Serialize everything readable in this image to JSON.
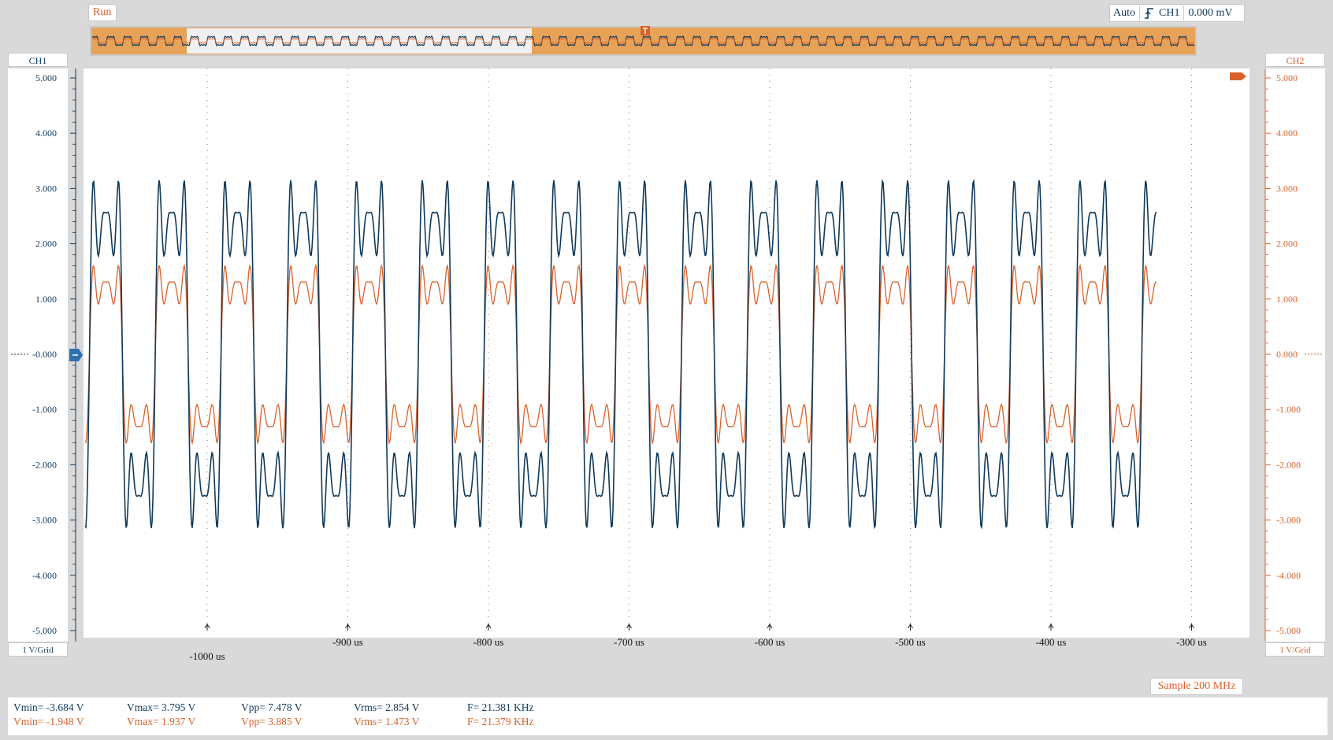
{
  "status": {
    "run_label": "Run"
  },
  "trigger": {
    "mode": "Auto",
    "channel": "CH1",
    "level": "0.000 mV",
    "edge_icon": "rising-edge-icon"
  },
  "channels": {
    "ch1": {
      "label": "CH1",
      "scale": "1 V/Grid",
      "color": "#113a5c"
    },
    "ch2": {
      "label": "CH2",
      "scale": "1 V/Grid",
      "color": "#d9622b"
    }
  },
  "ch1_ticks": [
    "5.000",
    "4.000",
    "3.000",
    "2.000",
    "1.000",
    "-0.000",
    "-1.000",
    "-2.000",
    "-3.000",
    "-4.000",
    "-5.000"
  ],
  "ch2_ticks": [
    "5.000",
    "4.000",
    "3.000",
    "2.000",
    "1.000",
    "0.000",
    "-1.000",
    "-2.000",
    "-3.000",
    "-4.000",
    "-5.000"
  ],
  "time_ticks": [
    "-1000 us",
    "-900 us",
    "-800 us",
    "-700 us",
    "-600 us",
    "-500 us",
    "-400 us",
    "-300 us"
  ],
  "sample_label": "Sample 200 MHz",
  "measurements": {
    "ch1": {
      "vmin": "Vmin= -3.684 V",
      "vmax": "Vmax= 3.795 V",
      "vpp": "Vpp= 7.478 V",
      "vrms": "Vrms= 2.854 V",
      "freq": "F= 21.381 KHz"
    },
    "ch2": {
      "vmin": "Vmin= -1.948 V",
      "vmax": "Vmax= 1.937 V",
      "vpp": "Vpp= 3.885 V",
      "vrms": "Vrms= 1.473 V",
      "freq": "F= 21.379 KHz"
    }
  },
  "colors": {
    "ch1": "#113a5c",
    "ch2": "#d9622b",
    "overview_fill": "#e8a257"
  }
}
